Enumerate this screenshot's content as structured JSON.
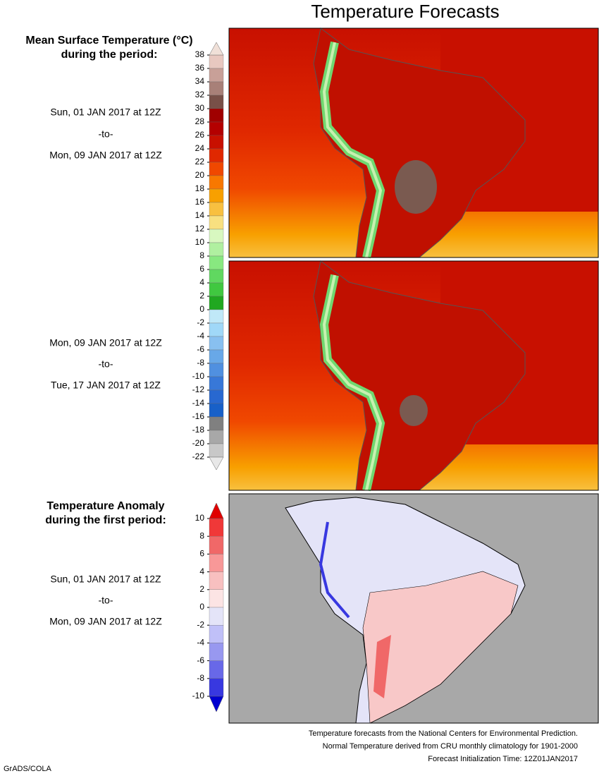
{
  "title": "Temperature Forecasts",
  "temperature_legend": {
    "heading": [
      "Mean Surface Temperature (°C)",
      "during the period:"
    ],
    "ticks": [
      38,
      36,
      34,
      32,
      30,
      28,
      26,
      24,
      22,
      20,
      18,
      16,
      14,
      12,
      10,
      8,
      6,
      4,
      2,
      0,
      -2,
      -4,
      -6,
      -8,
      -10,
      -12,
      -14,
      -16,
      -18,
      -20,
      -22
    ],
    "colors": [
      "#e8c8c0",
      "#c8a098",
      "#a88078",
      "#785048",
      "#a00000",
      "#b40000",
      "#c81000",
      "#e02800",
      "#f04800",
      "#f87800",
      "#f8a000",
      "#f8c040",
      "#f8e080",
      "#d8f8c0",
      "#b0f0a0",
      "#88e880",
      "#60d860",
      "#40c840",
      "#20a820",
      "#c0e8f8",
      "#a0d8f8",
      "#88c0f0",
      "#68a8e8",
      "#5090e0",
      "#3878d8",
      "#2868d0",
      "#1860c8",
      "#808080",
      "#a8a8a8",
      "#c8c8c8"
    ],
    "over_color": "#f0e0d8",
    "under_color": "#e8e8e8"
  },
  "forecast_periods": [
    {
      "start": "Sun, 01 JAN 2017 at 12Z",
      "separator": "-to-",
      "end": "Mon, 09 JAN 2017 at 12Z"
    },
    {
      "start": "Mon, 09 JAN 2017 at 12Z",
      "separator": "-to-",
      "end": "Tue, 17 JAN 2017 at 12Z"
    }
  ],
  "anomaly_legend": {
    "heading": [
      "Temperature Anomaly",
      "during the first period:"
    ],
    "ticks": [
      10,
      8,
      6,
      4,
      2,
      0,
      -2,
      -4,
      -6,
      -8,
      -10
    ],
    "colors": [
      "#f03838",
      "#f06868",
      "#f89898",
      "#f8c0c0",
      "#fce4e4",
      "#e4e4f8",
      "#c0c0f8",
      "#9898f0",
      "#6868e8",
      "#3838e0"
    ],
    "over_color": "#e00000",
    "under_color": "#0000d0"
  },
  "anomaly_period": {
    "start": "Sun, 01 JAN 2017 at 12Z",
    "separator": "-to-",
    "end": "Mon, 09 JAN 2017 at 12Z"
  },
  "footer": [
    "Temperature forecasts from the National Centers for Environmental Prediction.",
    "Normal Temperature derived from CRU monthly climatology for 1901-2000",
    "Forecast Initialization Time: 12Z01JAN2017"
  ],
  "credit": "GrADS/COLA"
}
